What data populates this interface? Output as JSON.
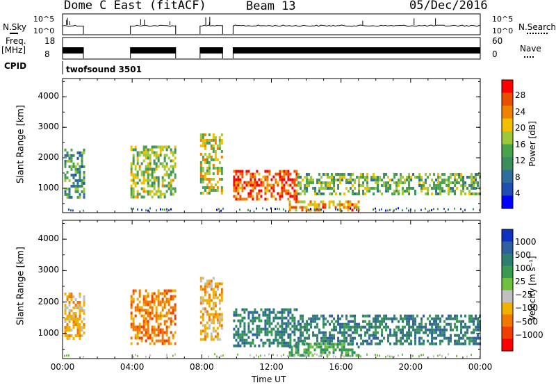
{
  "header": {
    "radar": "Dome C East (fitACF)",
    "beam": "Beam 13",
    "date": "05/Dec/2016"
  },
  "strips": {
    "nsky_label": "N.Sky",
    "nsky_ticks": [
      "10^5",
      "10^0"
    ],
    "nsearch_label": "N.Search",
    "nsearch_ticks": [
      "10^5",
      "10^0"
    ],
    "freq_label": "Freq.",
    "freq_unit": "[MHz]",
    "freq_ticks": [
      "18",
      "8"
    ],
    "nave_label": "Nave",
    "nave_ticks": [
      "60",
      "0"
    ],
    "cpid_label": "CPID",
    "cpid_value": "twofsound 3501"
  },
  "colors": {
    "power_scale": [
      "#0000ff",
      "#1e4fb0",
      "#2f6d9e",
      "#3c8f5c",
      "#4aa24a",
      "#9cc83c",
      "#f0c000",
      "#f08000",
      "#e85000",
      "#ff0000"
    ],
    "velocity_scale": [
      "#1030c0",
      "#2f60a0",
      "#2f7f70",
      "#3a9a50",
      "#70c040",
      "#c0c0c0",
      "#f0b000",
      "#f07a00",
      "#f04000",
      "#ff0000"
    ]
  },
  "chart_data": [
    {
      "type": "heatmap",
      "title": "Power",
      "xlabel": "Time UT",
      "ylabel": "Slant Range [km]",
      "colorbar_label": "Power [dB]",
      "colorbar_ticks": [
        "28",
        "24",
        "20",
        "16",
        "12",
        "8",
        "4"
      ],
      "x_ticks": [
        "00:00",
        "04:00",
        "08:00",
        "12:00",
        "16:00",
        "20:00",
        "00:00"
      ],
      "y_ticks": [
        "4000",
        "3000",
        "2000",
        "1000"
      ],
      "xlim_hours": [
        0,
        24
      ],
      "ylim_km": [
        200,
        4600
      ],
      "data_gaps_hours": [
        [
          1.2,
          3.9
        ],
        [
          6.5,
          7.9
        ],
        [
          9.2,
          9.8
        ]
      ],
      "echo_regions": [
        {
          "t_start": 0.1,
          "t_end": 1.2,
          "range_min": 700,
          "range_max": 2300,
          "power_db": 12
        },
        {
          "t_start": 3.9,
          "t_end": 6.5,
          "range_min": 700,
          "range_max": 2400,
          "power_db": 16
        },
        {
          "t_start": 7.9,
          "t_end": 9.2,
          "range_min": 800,
          "range_max": 2800,
          "power_db": 18
        },
        {
          "t_start": 9.8,
          "t_end": 13.5,
          "range_min": 600,
          "range_max": 1600,
          "power_db": 26
        },
        {
          "t_start": 13.5,
          "t_end": 24.0,
          "range_min": 800,
          "range_max": 1500,
          "power_db": 14
        },
        {
          "t_start": 13.0,
          "t_end": 17.0,
          "range_min": 300,
          "range_max": 600,
          "power_db": 22
        }
      ]
    },
    {
      "type": "heatmap",
      "title": "Velocity",
      "xlabel": "Time UT",
      "ylabel": "Slant Range [km]",
      "colorbar_label": "Velocity [m s⁻¹]",
      "colorbar_ticks": [
        "1000",
        "500",
        "100",
        "25",
        "−25",
        "−100",
        "−500",
        "−1000"
      ],
      "x_ticks": [
        "00:00",
        "04:00",
        "08:00",
        "12:00",
        "16:00",
        "20:00",
        "00:00"
      ],
      "y_ticks": [
        "4000",
        "3000",
        "2000",
        "1000"
      ],
      "xlim_hours": [
        0,
        24
      ],
      "ylim_km": [
        200,
        4600
      ],
      "data_gaps_hours": [
        [
          1.2,
          3.9
        ],
        [
          6.5,
          7.9
        ],
        [
          9.2,
          9.8
        ]
      ],
      "echo_regions": [
        {
          "t_start": 0.1,
          "t_end": 1.2,
          "range_min": 800,
          "range_max": 2300,
          "velocity": -60
        },
        {
          "t_start": 3.9,
          "t_end": 6.5,
          "range_min": 700,
          "range_max": 2400,
          "velocity": -150
        },
        {
          "t_start": 7.9,
          "t_end": 9.2,
          "range_min": 800,
          "range_max": 2800,
          "velocity": -40
        },
        {
          "t_start": 9.8,
          "t_end": 13.5,
          "range_min": 600,
          "range_max": 1800,
          "velocity": 150
        },
        {
          "t_start": 13.5,
          "t_end": 24.0,
          "range_min": 700,
          "range_max": 1600,
          "velocity": 200
        },
        {
          "t_start": 13.0,
          "t_end": 17.0,
          "range_min": 300,
          "range_max": 700,
          "velocity": 80
        }
      ]
    }
  ]
}
